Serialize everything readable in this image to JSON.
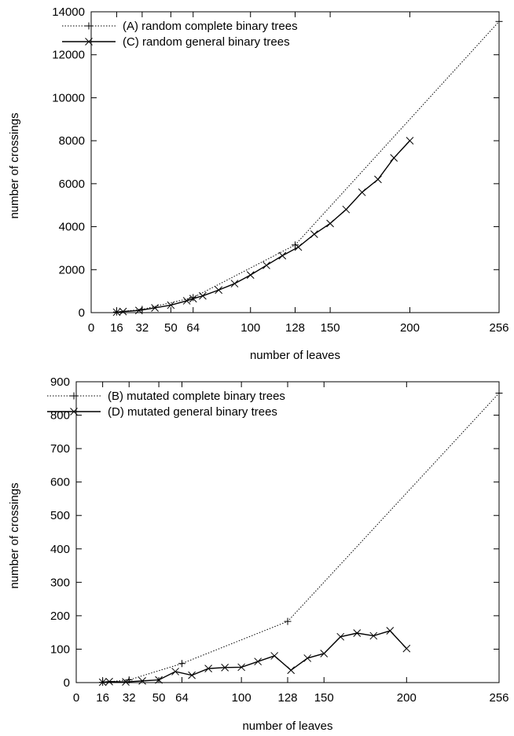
{
  "chart_data": [
    {
      "type": "line",
      "xlabel": "number of leaves",
      "ylabel": "number of crossings",
      "xlim": [
        0,
        256
      ],
      "ylim": [
        0,
        14000
      ],
      "xticks": [
        0,
        16,
        32,
        50,
        64,
        100,
        128,
        150,
        200,
        256
      ],
      "xtick_labels": [
        "0",
        "16",
        "32",
        "50",
        "64",
        "100",
        "128",
        "150",
        "200",
        "256"
      ],
      "yticks": [
        0,
        2000,
        4000,
        6000,
        8000,
        10000,
        12000,
        14000
      ],
      "ytick_labels": [
        "0",
        "2000",
        "4000",
        "6000",
        "8000",
        "10000",
        "12000",
        "14000"
      ],
      "legend_position": "top-left",
      "series": [
        {
          "name": "(A) random complete binary trees",
          "style": "dotted",
          "marker": "plus",
          "x": [
            16,
            32,
            64,
            128,
            256
          ],
          "y": [
            30,
            150,
            700,
            3150,
            13550
          ]
        },
        {
          "name": "(C) random general binary trees",
          "style": "solid",
          "marker": "x",
          "x": [
            16,
            20,
            30,
            40,
            50,
            60,
            64,
            70,
            80,
            90,
            100,
            110,
            120,
            130,
            140,
            150,
            160,
            170,
            180,
            190,
            200
          ],
          "y": [
            20,
            50,
            100,
            220,
            350,
            550,
            650,
            780,
            1050,
            1350,
            1750,
            2200,
            2650,
            3050,
            3650,
            4150,
            4800,
            5600,
            6200,
            7200,
            8000
          ]
        }
      ]
    },
    {
      "type": "line",
      "xlabel": "number of leaves",
      "ylabel": "number of crossings",
      "xlim": [
        0,
        256
      ],
      "ylim": [
        0,
        900
      ],
      "xticks": [
        0,
        16,
        32,
        50,
        64,
        100,
        128,
        150,
        200,
        256
      ],
      "xtick_labels": [
        "0",
        "16",
        "32",
        "50",
        "64",
        "100",
        "128",
        "150",
        "200",
        "256"
      ],
      "yticks": [
        0,
        100,
        200,
        300,
        400,
        500,
        600,
        700,
        800,
        900
      ],
      "ytick_labels": [
        "0",
        "100",
        "200",
        "300",
        "400",
        "500",
        "600",
        "700",
        "800",
        "900"
      ],
      "legend_position": "top-left",
      "series": [
        {
          "name": "(B) mutated complete binary trees",
          "style": "dotted",
          "marker": "plus",
          "x": [
            16,
            32,
            64,
            128,
            256
          ],
          "y": [
            1,
            8,
            57,
            183,
            866
          ]
        },
        {
          "name": "(D) mutated general binary trees",
          "style": "solid",
          "marker": "x",
          "x": [
            16,
            20,
            30,
            40,
            50,
            60,
            70,
            80,
            90,
            100,
            110,
            120,
            130,
            140,
            150,
            160,
            170,
            180,
            190,
            200
          ],
          "y": [
            1,
            3,
            2,
            5,
            8,
            33,
            22,
            42,
            45,
            46,
            63,
            80,
            37,
            73,
            87,
            137,
            148,
            140,
            155,
            102
          ]
        }
      ]
    }
  ]
}
